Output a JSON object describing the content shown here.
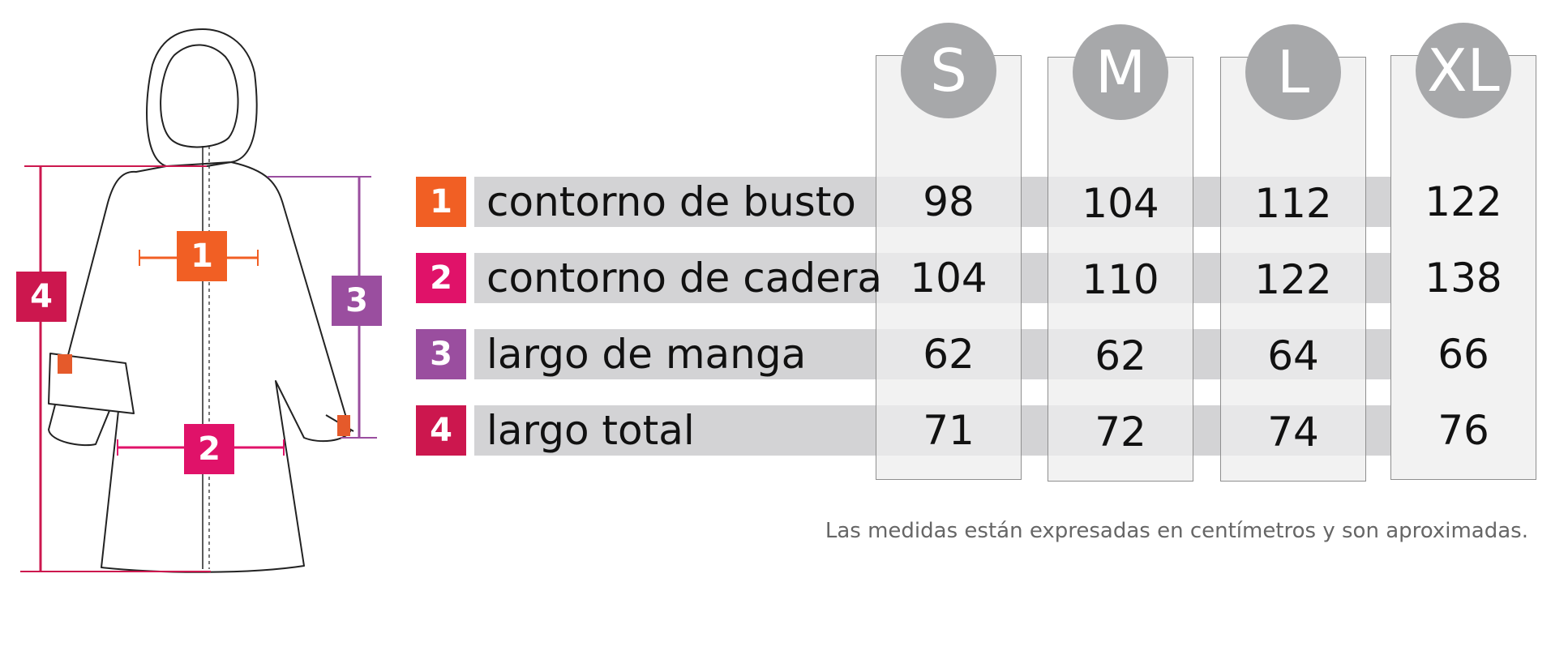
{
  "colors": {
    "orange": "#f15f24",
    "pink": "#e01269",
    "purple": "#9a4e9f",
    "crimson": "#cc174e",
    "row_band": "#d3d3d5",
    "size_circle": "#a7a8aa"
  },
  "figure": {
    "icon": "coat-drawing-icon",
    "markers": [
      "1",
      "2",
      "3",
      "4"
    ]
  },
  "sizes": [
    "S",
    "M",
    "L",
    "XL"
  ],
  "rows": [
    {
      "num": "1",
      "label": "contorno de busto",
      "values": [
        "98",
        "104",
        "112",
        "122"
      ]
    },
    {
      "num": "2",
      "label": "contorno de cadera",
      "values": [
        "104",
        "110",
        "122",
        "138"
      ]
    },
    {
      "num": "3",
      "label": "largo de manga",
      "values": [
        "62",
        "62",
        "64",
        "66"
      ]
    },
    {
      "num": "4",
      "label": "largo total",
      "values": [
        "71",
        "72",
        "74",
        "76"
      ]
    }
  ],
  "footnote": "Las medidas están expresadas en centímetros y son aproximadas."
}
